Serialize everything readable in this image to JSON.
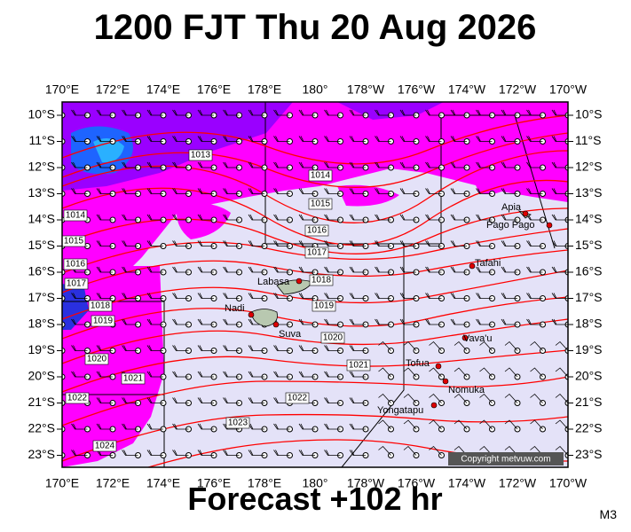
{
  "header": {
    "title": "1200 FJT Thu 20 Aug 2026"
  },
  "axes": {
    "longitudes": [
      "170°E",
      "172°E",
      "174°E",
      "176°E",
      "178°E",
      "180°",
      "178°W",
      "176°W",
      "174°W",
      "172°W",
      "170°W"
    ],
    "latitudes": [
      "10°S",
      "11°S",
      "12°S",
      "13°S",
      "14°S",
      "15°S",
      "16°S",
      "17°S",
      "18°S",
      "19°S",
      "20°S",
      "21°S",
      "22°S",
      "23°S"
    ]
  },
  "isobars": [
    "1013",
    "1014",
    "1015",
    "1016",
    "1017",
    "1018",
    "1019",
    "1020",
    "1021",
    "1022",
    "1023",
    "1024",
    "1014",
    "1015",
    "1016",
    "1017",
    "1018",
    "1019",
    "1020",
    "1021",
    "1022"
  ],
  "places": [
    "Apia",
    "Pago Pago",
    "Tafahi",
    "Labasa",
    "Nadi",
    "Suva",
    "Vava'u",
    "Tofua",
    "Nomuka",
    "Yongatapu"
  ],
  "copyright": "Copyright metvuw.com",
  "footer": {
    "forecast": "Forecast +102 hr",
    "model": "M3"
  }
}
